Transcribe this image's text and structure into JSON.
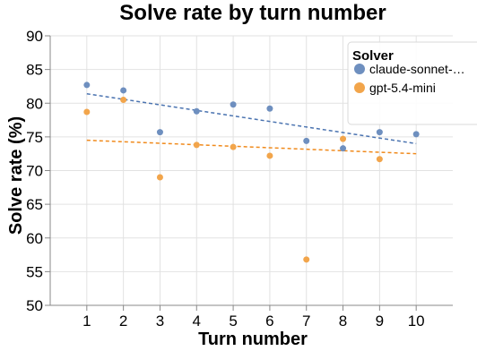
{
  "chart_data": {
    "type": "scatter",
    "title": "Solve rate by turn number",
    "xlabel": "Turn number",
    "ylabel": "Solve rate (%)",
    "xlim": [
      0,
      11
    ],
    "ylim": [
      50,
      90
    ],
    "x_ticks": [
      1,
      2,
      3,
      4,
      5,
      6,
      7,
      8,
      9,
      10
    ],
    "y_ticks": [
      50,
      55,
      60,
      65,
      70,
      75,
      80,
      85,
      90
    ],
    "grid": true,
    "legend": {
      "title": "Solver",
      "placement": "top-right"
    },
    "series": [
      {
        "name": "claude-sonnet-…",
        "color": "#6e8fbf",
        "trend_color": "#4a73b0",
        "x": [
          1,
          2,
          3,
          4,
          5,
          6,
          7,
          8,
          9,
          10
        ],
        "y": [
          82.7,
          81.9,
          75.7,
          78.8,
          79.8,
          79.2,
          74.4,
          73.3,
          75.7,
          75.4
        ],
        "trendline": {
          "x": [
            1,
            10
          ],
          "y": [
            81.4,
            74.0
          ]
        }
      },
      {
        "name": "gpt-5.4-mini",
        "color": "#f2a54b",
        "trend_color": "#f08a1c",
        "x": [
          1,
          2,
          3,
          4,
          5,
          6,
          7,
          8,
          9,
          10
        ],
        "y": [
          78.7,
          80.5,
          69.0,
          73.8,
          73.5,
          72.2,
          56.8,
          74.7,
          71.7,
          null
        ],
        "trendline": {
          "x": [
            1,
            10
          ],
          "y": [
            74.5,
            72.5
          ]
        }
      }
    ]
  }
}
